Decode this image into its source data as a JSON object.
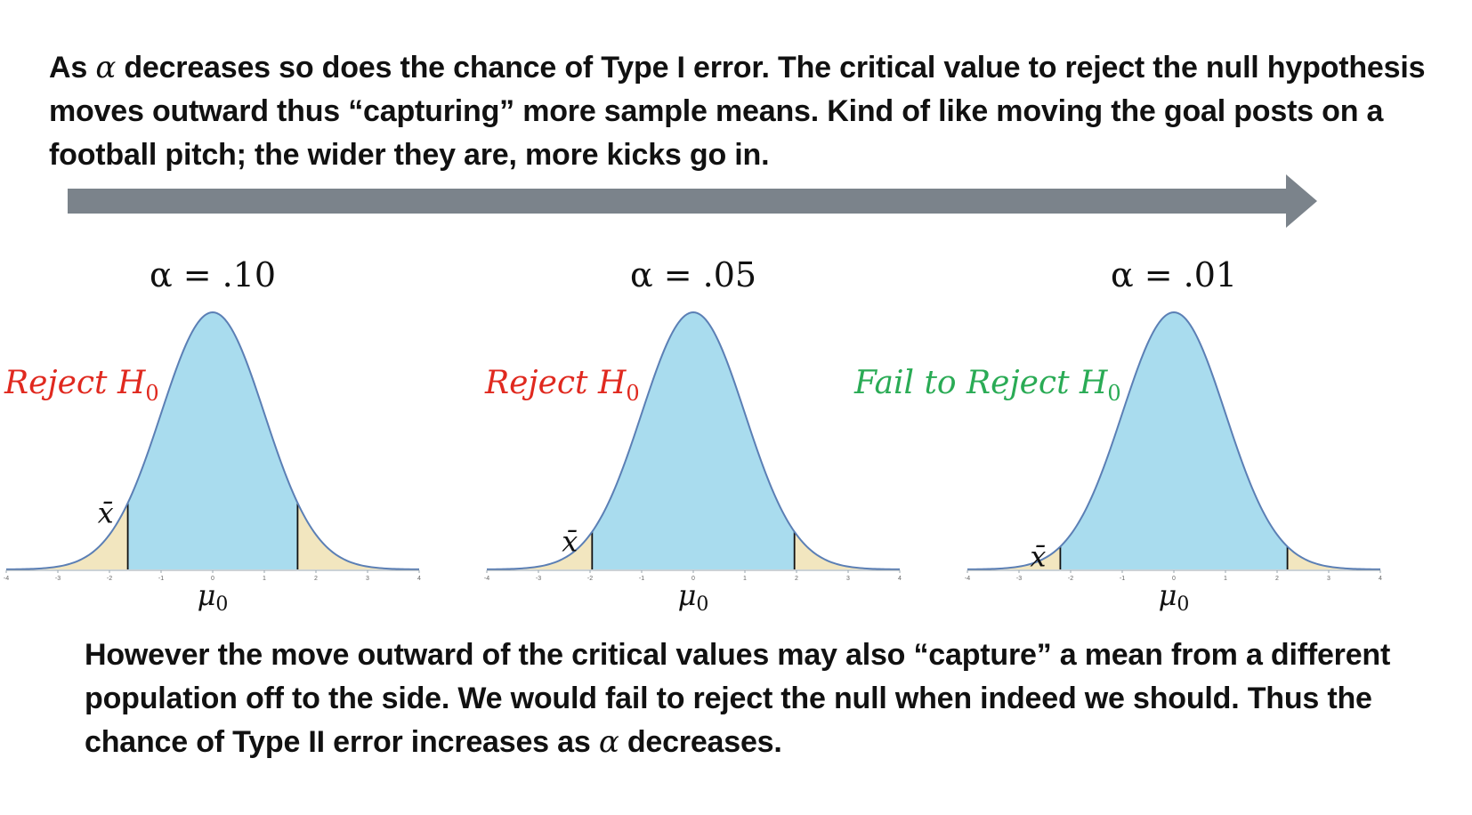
{
  "intro": {
    "prefix": "As ",
    "symbol": "α",
    "text": " decreases so does the chance of Type I error. The critical value to reject the null hypothesis moves outward thus “capturing” more sample means. Kind of like moving the goal posts on a football pitch; the wider they are, more kicks go in."
  },
  "outro": {
    "text": "However the move outward of the critical values may also “capture” a mean from a different population off to the side. We would fail to reject the null when indeed we should. Thus the chance of Type II error increases as ",
    "symbol": "α",
    "suffix": " decreases."
  },
  "colors": {
    "curve_fill": "#a9dcee",
    "curve_stroke": "#5b7fb5",
    "tail_fill": "#f2e6bf",
    "reject": "#e0291f",
    "fail": "#2aab55",
    "arrow": "#7b838b"
  },
  "axis": {
    "min": -4,
    "max": 4,
    "ticks": [
      "-4",
      "-3",
      "-2",
      "-1",
      "0",
      "1",
      "2",
      "3",
      "4"
    ]
  },
  "panels": [
    {
      "alpha_label": "α = .10",
      "critical": 1.645,
      "xbar": -1.645,
      "verdict": {
        "main": "Reject H",
        "sub": "0",
        "color": "#e0291f"
      },
      "mean_label": {
        "main": "μ",
        "sub": "0"
      },
      "xbar_label": "x̄"
    },
    {
      "alpha_label": "α = .05",
      "critical": 1.96,
      "xbar": -1.96,
      "verdict": {
        "main": "Reject H",
        "sub": "0",
        "color": "#e0291f"
      },
      "mean_label": {
        "main": "μ",
        "sub": "0"
      },
      "xbar_label": "x̄"
    },
    {
      "alpha_label": "α = .01",
      "critical": 2.2,
      "xbar": -2.2,
      "verdict": {
        "main": "Fail to Reject H",
        "sub": "0",
        "color": "#2aab55"
      },
      "mean_label": {
        "main": "μ",
        "sub": "0"
      },
      "xbar_label": "x̄"
    }
  ]
}
